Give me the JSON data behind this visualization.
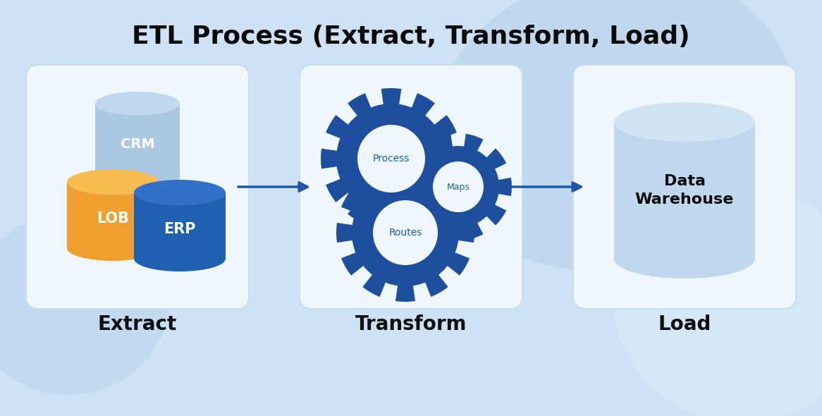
{
  "title": "ETL Process (Extract, Transform, Load)",
  "title_fontsize": 26,
  "title_fontweight": "bold",
  "bg_color": "#cde3f5",
  "bg_blob_color1": "#b5d0ea",
  "bg_blob_color2": "#d8eaf8",
  "panel_bg": "#f0f7fc",
  "panel_border": "#c8dff0",
  "arrow_color": "#2255aa",
  "arrow_lw": 2.5,
  "labels": [
    "Extract",
    "Transform",
    "Load"
  ],
  "label_fontsize": 20,
  "label_fontweight": "bold",
  "label_color": "#111111",
  "crm_body": "#aac8e0",
  "crm_top": "#c0d8ee",
  "erp_body": "#2060b0",
  "erp_top": "#3070c8",
  "lob_body": "#f0a030",
  "lob_top": "#f8bc50",
  "gear_color": "#1e4f9e",
  "gear_hole_color": "#f0f7fc",
  "gear_label_color": "#2060b0",
  "wh_body": "#c0d8ee",
  "wh_top": "#d0e4f4",
  "white": "#ffffff",
  "dark_text": "#0a0a0a"
}
